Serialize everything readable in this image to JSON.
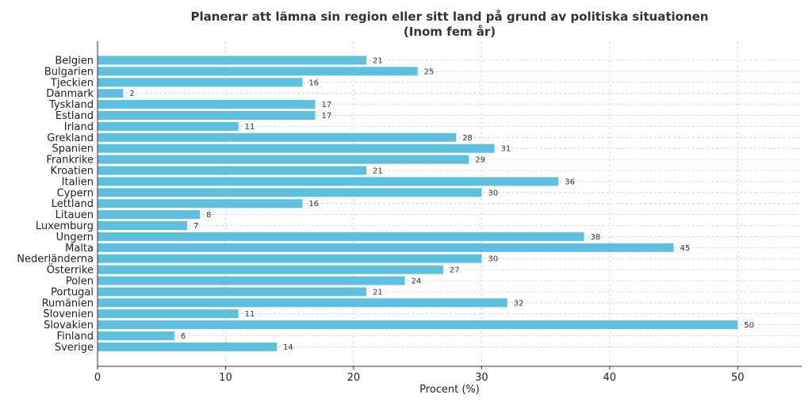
{
  "chart_data": {
    "type": "bar",
    "orientation": "horizontal",
    "title": "Planerar att lämna sin region eller sitt land på grund av politiska situationen",
    "subtitle": "(Inom fem år)",
    "xlabel": "Procent (%)",
    "ylabel": "",
    "xlim": [
      0,
      55
    ],
    "xticks": [
      0,
      10,
      20,
      30,
      40,
      50
    ],
    "grid": true,
    "bar_color": "#5fbfdf",
    "categories": [
      "Belgien",
      "Bulgarien",
      "Tjeckien",
      "Danmark",
      "Tyskland",
      "Estland",
      "Irland",
      "Grekland",
      "Spanien",
      "Frankrike",
      "Kroatien",
      "Italien",
      "Cypern",
      "Lettland",
      "Litauen",
      "Luxemburg",
      "Ungern",
      "Malta",
      "Nederländerna",
      "Österrike",
      "Polen",
      "Portugal",
      "Rumänien",
      "Slovenien",
      "Slovakien",
      "Finland",
      "Sverige"
    ],
    "values": [
      21,
      25,
      16,
      2,
      17,
      17,
      11,
      28,
      31,
      29,
      21,
      36,
      30,
      16,
      8,
      7,
      38,
      45,
      30,
      27,
      24,
      21,
      32,
      11,
      50,
      6,
      14
    ]
  }
}
